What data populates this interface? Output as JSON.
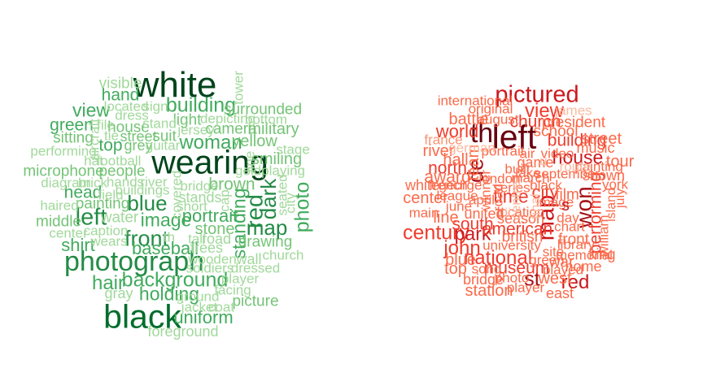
{
  "palettes": {
    "green": [
      "#00441b",
      "#006d2c",
      "#238b45",
      "#41ab5d",
      "#74c476",
      "#a1d99b"
    ],
    "red": [
      "#67000d",
      "#a50f15",
      "#cb181d",
      "#ef3b2c",
      "#fb6a4a",
      "#fc9272",
      "#fcbba1"
    ]
  },
  "clouds": [
    {
      "palette": "green",
      "words": [
        {
          "text": "white",
          "weight": 1.0,
          "color": 0
        },
        {
          "text": "wearing",
          "weight": 0.9,
          "color": 0
        },
        {
          "text": "black",
          "weight": 0.92,
          "color": 1
        },
        {
          "text": "photograph",
          "weight": 0.7,
          "color": 2
        },
        {
          "text": "building",
          "weight": 0.45,
          "color": 3
        },
        {
          "text": "woman",
          "weight": 0.42,
          "color": 3
        },
        {
          "text": "left",
          "weight": 0.55,
          "color": 2
        },
        {
          "text": "front",
          "weight": 0.5,
          "color": 2
        },
        {
          "text": "blue",
          "weight": 0.47,
          "color": 2
        },
        {
          "text": "red",
          "weight": 0.55,
          "color": 2
        },
        {
          "text": "dark",
          "weight": 0.48,
          "color": 2
        },
        {
          "text": "map",
          "weight": 0.48,
          "color": 2
        },
        {
          "text": "photo",
          "weight": 0.44,
          "color": 3
        },
        {
          "text": "standing",
          "weight": 0.38,
          "color": 3
        },
        {
          "text": "background",
          "weight": 0.45,
          "color": 3
        },
        {
          "text": "hair",
          "weight": 0.42,
          "color": 3
        },
        {
          "text": "holding",
          "weight": 0.38,
          "color": 3
        },
        {
          "text": "uniform",
          "weight": 0.35,
          "color": 3
        },
        {
          "text": "image",
          "weight": 0.38,
          "color": 3
        },
        {
          "text": "baseball",
          "weight": 0.35,
          "color": 3
        },
        {
          "text": "portrait",
          "weight": 0.35,
          "color": 3
        },
        {
          "text": "view",
          "weight": 0.38,
          "color": 3
        },
        {
          "text": "hand",
          "weight": 0.33,
          "color": 3
        },
        {
          "text": "green",
          "weight": 0.33,
          "color": 3
        },
        {
          "text": "head",
          "weight": 0.33,
          "color": 3
        },
        {
          "text": "shirt",
          "weight": 0.35,
          "color": 3
        },
        {
          "text": "top",
          "weight": 0.33,
          "color": 3
        },
        {
          "text": "brown",
          "weight": 0.32,
          "color": 4
        },
        {
          "text": "stone",
          "weight": 0.3,
          "color": 4
        },
        {
          "text": "smiling",
          "weight": 0.3,
          "color": 4
        },
        {
          "text": "yellow",
          "weight": 0.28,
          "color": 4
        },
        {
          "text": "military",
          "weight": 0.28,
          "color": 4
        },
        {
          "text": "surrounded",
          "weight": 0.26,
          "color": 4
        },
        {
          "text": "camera",
          "weight": 0.27,
          "color": 4
        },
        {
          "text": "sitting",
          "weight": 0.27,
          "color": 4
        },
        {
          "text": "microphone",
          "weight": 0.27,
          "color": 4
        },
        {
          "text": "people",
          "weight": 0.27,
          "color": 4
        },
        {
          "text": "light",
          "weight": 0.27,
          "color": 4
        },
        {
          "text": "suit",
          "weight": 0.27,
          "color": 4
        },
        {
          "text": "picture",
          "weight": 0.27,
          "color": 4
        },
        {
          "text": "drawing",
          "weight": 0.26,
          "color": 4
        },
        {
          "text": "painting",
          "weight": 0.26,
          "color": 4
        },
        {
          "text": "middle",
          "weight": 0.26,
          "color": 4
        },
        {
          "text": "water",
          "weight": 0.25,
          "color": 5
        },
        {
          "text": "visible",
          "weight": 0.25,
          "color": 5
        },
        {
          "text": "house",
          "weight": 0.25,
          "color": 4
        },
        {
          "text": "street",
          "weight": 0.24,
          "color": 4
        },
        {
          "text": "grey",
          "weight": 0.24,
          "color": 4
        },
        {
          "text": "stands",
          "weight": 0.24,
          "color": 5
        },
        {
          "text": "trees",
          "weight": 0.24,
          "color": 5
        },
        {
          "text": "road",
          "weight": 0.24,
          "color": 5
        },
        {
          "text": "wall",
          "weight": 0.24,
          "color": 5
        },
        {
          "text": "church",
          "weight": 0.22,
          "color": 5
        },
        {
          "text": "player",
          "weight": 0.22,
          "color": 5
        },
        {
          "text": "facing",
          "weight": 0.22,
          "color": 5
        },
        {
          "text": "ground",
          "weight": 0.22,
          "color": 5
        },
        {
          "text": "jacket",
          "weight": 0.22,
          "color": 5
        },
        {
          "text": "coat",
          "weight": 0.22,
          "color": 5
        },
        {
          "text": "foreground",
          "weight": 0.24,
          "color": 5
        },
        {
          "text": "gray",
          "weight": 0.24,
          "color": 5
        },
        {
          "text": "soldiers",
          "weight": 0.22,
          "color": 5
        },
        {
          "text": "dressed",
          "weight": 0.22,
          "color": 5
        },
        {
          "text": "wooden",
          "weight": 0.22,
          "color": 5
        },
        {
          "text": "tall",
          "weight": 0.22,
          "color": 5
        },
        {
          "text": "th",
          "weight": 0.22,
          "color": 5
        },
        {
          "text": "short",
          "weight": 0.22,
          "color": 5
        },
        {
          "text": "bridge",
          "weight": 0.22,
          "color": 5
        },
        {
          "text": "river",
          "weight": 0.22,
          "color": 5
        },
        {
          "text": "hands",
          "weight": 0.22,
          "color": 5
        },
        {
          "text": "buildings",
          "weight": 0.22,
          "color": 5
        },
        {
          "text": "field",
          "weight": 0.22,
          "color": 5
        },
        {
          "text": "diagram",
          "weight": 0.22,
          "color": 5
        },
        {
          "text": "brick",
          "weight": 0.22,
          "color": 5
        },
        {
          "text": "hat",
          "weight": 0.22,
          "color": 5
        },
        {
          "text": "football",
          "weight": 0.22,
          "color": 5
        },
        {
          "text": "haired",
          "weight": 0.22,
          "color": 5
        },
        {
          "text": "center",
          "weight": 0.22,
          "color": 5
        },
        {
          "text": "caption",
          "weight": 0.22,
          "color": 5
        },
        {
          "text": "wears",
          "weight": 0.22,
          "color": 5
        },
        {
          "text": "performing",
          "weight": 0.22,
          "color": 5
        },
        {
          "text": "guitar",
          "weight": 0.2,
          "color": 5
        },
        {
          "text": "jersey",
          "weight": 0.22,
          "color": 5
        },
        {
          "text": "stand",
          "weight": 0.2,
          "color": 5
        },
        {
          "text": "dress",
          "weight": 0.22,
          "color": 5
        },
        {
          "text": "located",
          "weight": 0.2,
          "color": 5
        },
        {
          "text": "sign",
          "weight": 0.2,
          "color": 5
        },
        {
          "text": "file",
          "weight": 0.22,
          "color": 5
        },
        {
          "text": "tie",
          "weight": 0.2,
          "color": 5
        },
        {
          "text": "depicting",
          "weight": 0.22,
          "color": 5
        },
        {
          "text": "bottom",
          "weight": 0.22,
          "color": 5
        },
        {
          "text": "stage",
          "weight": 0.22,
          "color": 5
        },
        {
          "text": "goldplaying",
          "weight": 0.22,
          "color": 5
        },
        {
          "text": "line",
          "weight": 0.2,
          "color": 5
        },
        {
          "text": "tower",
          "weight": 0.2,
          "color": 5
        },
        {
          "text": "aircraft",
          "weight": 0.2,
          "color": 5
        },
        {
          "text": "covered",
          "weight": 0.2,
          "color": 5
        },
        {
          "text": "cap",
          "weight": 0.2,
          "color": 5
        },
        {
          "text": "seated",
          "weight": 0.2,
          "color": 5
        },
        {
          "text": "city",
          "weight": 0.2,
          "color": 5
        }
      ]
    },
    {
      "palette": "red",
      "words": [
        {
          "text": "left",
          "weight": 0.9,
          "color": 0
        },
        {
          "text": "th",
          "weight": 0.72,
          "color": 0
        },
        {
          "text": "pictured",
          "weight": 0.55,
          "color": 2
        },
        {
          "text": "map",
          "weight": 0.55,
          "color": 2
        },
        {
          "text": "won",
          "weight": 0.52,
          "color": 1
        },
        {
          "text": "de",
          "weight": 0.5,
          "color": 1
        },
        {
          "text": "century",
          "weight": 0.45,
          "color": 3
        },
        {
          "text": "john",
          "weight": 0.42,
          "color": 3
        },
        {
          "text": "national",
          "weight": 0.42,
          "color": 3
        },
        {
          "text": "st",
          "weight": 0.44,
          "color": 1
        },
        {
          "text": "red",
          "weight": 0.42,
          "color": 2
        },
        {
          "text": "park",
          "weight": 0.38,
          "color": 2
        },
        {
          "text": "view",
          "weight": 0.4,
          "color": 3
        },
        {
          "text": "house",
          "weight": 0.37,
          "color": 2
        },
        {
          "text": "time",
          "weight": 0.37,
          "color": 3
        },
        {
          "text": "city",
          "weight": 0.35,
          "color": 3
        },
        {
          "text": "world",
          "weight": 0.35,
          "color": 3
        },
        {
          "text": "performing",
          "weight": 0.33,
          "color": 3
        },
        {
          "text": "building",
          "weight": 0.33,
          "color": 3
        },
        {
          "text": "street",
          "weight": 0.3,
          "color": 4
        },
        {
          "text": "tour",
          "weight": 0.3,
          "color": 4
        },
        {
          "text": "church",
          "weight": 0.32,
          "color": 3
        },
        {
          "text": "north",
          "weight": 0.33,
          "color": 3
        },
        {
          "text": "award",
          "weight": 0.32,
          "color": 4
        },
        {
          "text": "south",
          "weight": 0.32,
          "color": 3
        },
        {
          "text": "american",
          "weight": 0.32,
          "color": 3
        },
        {
          "text": "museum",
          "weight": 0.32,
          "color": 3
        },
        {
          "text": "team",
          "weight": 0.3,
          "color": 4
        },
        {
          "text": "hall",
          "weight": 0.3,
          "color": 4
        },
        {
          "text": "battle",
          "weight": 0.3,
          "color": 4
        },
        {
          "text": "river",
          "weight": 0.3,
          "color": 4
        },
        {
          "text": "line",
          "weight": 0.28,
          "color": 4
        },
        {
          "text": "top",
          "weight": 0.3,
          "color": 4
        },
        {
          "text": "blue",
          "weight": 0.28,
          "color": 4
        },
        {
          "text": "station",
          "weight": 0.28,
          "color": 4
        },
        {
          "text": "west",
          "weight": 0.28,
          "color": 4
        },
        {
          "text": "war",
          "weight": 0.27,
          "color": 4
        },
        {
          "text": "front",
          "weight": 0.27,
          "color": 4
        },
        {
          "text": "film",
          "weight": 0.27,
          "color": 4
        },
        {
          "text": "school",
          "weight": 0.26,
          "color": 4
        },
        {
          "text": "president",
          "weight": 0.26,
          "color": 4
        },
        {
          "text": "music",
          "weight": 0.24,
          "color": 4
        },
        {
          "text": "shown",
          "weight": 0.24,
          "color": 4
        },
        {
          "text": "york",
          "weight": 0.22,
          "color": 4
        },
        {
          "text": "home",
          "weight": 0.24,
          "color": 4
        },
        {
          "text": "king",
          "weight": 0.24,
          "color": 4
        },
        {
          "text": "east",
          "weight": 0.24,
          "color": 4
        },
        {
          "text": "player",
          "weight": 0.22,
          "color": 4
        },
        {
          "text": "bridge",
          "weight": 0.24,
          "color": 4
        },
        {
          "text": "british",
          "weight": 0.26,
          "color": 4
        },
        {
          "text": "united",
          "weight": 0.24,
          "color": 4
        },
        {
          "text": "season",
          "weight": 0.24,
          "color": 4
        },
        {
          "text": "international",
          "weight": 0.22,
          "color": 4
        },
        {
          "text": "original",
          "weight": 0.22,
          "color": 4
        },
        {
          "text": "august",
          "weight": 0.22,
          "color": 4
        },
        {
          "text": "george",
          "weight": 0.22,
          "color": 4
        },
        {
          "text": "white",
          "weight": 0.24,
          "color": 4
        },
        {
          "text": "center",
          "weight": 0.3,
          "color": 4
        },
        {
          "text": "main",
          "weight": 0.22,
          "color": 4
        },
        {
          "text": "league",
          "weight": 0.22,
          "color": 4
        },
        {
          "text": "june",
          "weight": 0.2,
          "color": 4
        },
        {
          "text": "april",
          "weight": 0.2,
          "color": 4
        },
        {
          "text": "location",
          "weight": 0.22,
          "color": 4
        },
        {
          "text": "series",
          "weight": 0.22,
          "color": 4
        },
        {
          "text": "london",
          "weight": 0.2,
          "color": 4
        },
        {
          "text": "march",
          "weight": 0.2,
          "color": 4
        },
        {
          "text": "image",
          "weight": 0.22,
          "color": 4
        },
        {
          "text": "game",
          "weight": 0.24,
          "color": 4
        },
        {
          "text": "video",
          "weight": 0.22,
          "color": 4
        },
        {
          "text": "air",
          "weight": 0.22,
          "color": 4
        },
        {
          "text": "portrait",
          "weight": 0.2,
          "color": 4
        },
        {
          "text": "built",
          "weight": 0.2,
          "color": 4
        },
        {
          "text": "lake",
          "weight": 0.2,
          "color": 4
        },
        {
          "text": "september",
          "weight": 0.2,
          "color": 4
        },
        {
          "text": "black",
          "weight": 0.2,
          "color": 4
        },
        {
          "text": "day",
          "weight": 0.2,
          "color": 4
        },
        {
          "text": "chart",
          "weight": 0.2,
          "color": 4
        },
        {
          "text": "library",
          "weight": 0.2,
          "color": 4
        },
        {
          "text": "memorial",
          "weight": 0.2,
          "color": 4
        },
        {
          "text": "played",
          "weight": 0.2,
          "color": 4
        },
        {
          "text": "site",
          "weight": 0.2,
          "color": 4
        },
        {
          "text": "green",
          "weight": 0.2,
          "color": 4
        },
        {
          "text": "university",
          "weight": 0.2,
          "color": 4
        },
        {
          "text": "song",
          "weight": 0.2,
          "color": 4
        },
        {
          "text": "photo",
          "weight": 0.2,
          "color": 4
        },
        {
          "text": "william",
          "weight": 0.2,
          "color": 4
        },
        {
          "text": "island",
          "weight": 0.18,
          "color": 4
        },
        {
          "text": "july",
          "weight": 0.18,
          "color": 4
        },
        {
          "text": "painting",
          "weight": 0.2,
          "color": 4
        },
        {
          "text": "road",
          "weight": 0.2,
          "color": 4
        },
        {
          "text": "winner",
          "weight": 0.2,
          "color": 4
        },
        {
          "text": "s",
          "weight": 0.3,
          "color": 2
        },
        {
          "text": "french",
          "weight": 0.2,
          "color": 4
        },
        {
          "text": "france",
          "weight": 0.2,
          "color": 5
        },
        {
          "text": "german",
          "weight": 0.2,
          "color": 6
        },
        {
          "text": "james",
          "weight": 0.2,
          "color": 6
        },
        {
          "text": "route",
          "weight": 0.2,
          "color": 6
        },
        {
          "text": "final",
          "weight": 0.2,
          "color": 6
        },
        {
          "text": "centre",
          "weight": 0.2,
          "color": 6
        },
        {
          "text": "u",
          "weight": 0.2,
          "color": 6
        },
        {
          "text": "ii",
          "weight": 0.2,
          "color": 6
        }
      ]
    }
  ]
}
